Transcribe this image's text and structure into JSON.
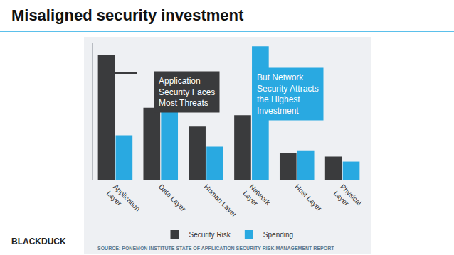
{
  "chart_data": {
    "type": "bar",
    "title": "Misaligned security investment",
    "categories": [
      "Application Layer",
      "Data Layer",
      "Human Layer",
      "Network Layer",
      "Host Layer",
      "Physical Layer"
    ],
    "series": [
      {
        "name": "Security Risk",
        "color": "#3a3b3d",
        "values": [
          100,
          58,
          43,
          52,
          22,
          19
        ]
      },
      {
        "name": "Spending",
        "color": "#29a9e1",
        "values": [
          36,
          55,
          27,
          107,
          24,
          15
        ]
      }
    ],
    "ylim": [
      0,
      110
    ],
    "yticks": [],
    "tick_labels": "x",
    "grid": false,
    "legend": "bottom",
    "annotations": [
      "Application Security Faces Most Threats",
      "But Network Security Attracts the Highest Investment"
    ],
    "source": "SOURCE: PONEMON INSTITUTE STATE OF APPLICATION SECURITY RISK MANAGEMENT REPORT",
    "logo": "BLACKDUCK"
  }
}
